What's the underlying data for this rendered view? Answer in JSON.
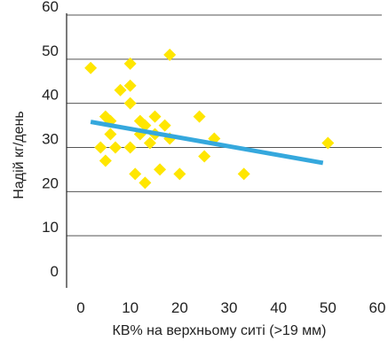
{
  "chart_data": {
    "type": "scatter",
    "title": "",
    "xlabel": "КВ% на верхньому ситі (>19 мм)",
    "ylabel": "Надій кг/день",
    "xlim": [
      0,
      60
    ],
    "ylim": [
      0,
      60
    ],
    "x_ticks": [
      "0",
      "10",
      "20",
      "30",
      "40",
      "50",
      "60"
    ],
    "y_ticks": [
      "0",
      "10",
      "20",
      "30",
      "40",
      "50",
      "60"
    ],
    "grid": "horizontal",
    "legend": "none",
    "marker_color": "#FFE600",
    "trend_color": "#35A8DD",
    "points": [
      [
        2,
        48
      ],
      [
        4,
        30
      ],
      [
        5,
        37
      ],
      [
        5,
        27
      ],
      [
        6,
        33
      ],
      [
        6,
        36
      ],
      [
        7,
        30
      ],
      [
        8,
        43
      ],
      [
        10,
        44
      ],
      [
        10,
        40
      ],
      [
        10,
        49
      ],
      [
        10,
        30
      ],
      [
        11,
        24
      ],
      [
        12,
        33
      ],
      [
        12,
        36
      ],
      [
        13,
        22
      ],
      [
        13,
        35
      ],
      [
        14,
        31
      ],
      [
        15,
        37
      ],
      [
        15,
        33
      ],
      [
        16,
        25
      ],
      [
        17,
        35
      ],
      [
        18,
        32
      ],
      [
        18,
        51
      ],
      [
        20,
        24
      ],
      [
        24,
        37
      ],
      [
        25,
        28
      ],
      [
        27,
        32
      ],
      [
        33,
        24
      ],
      [
        50,
        31
      ]
    ],
    "trend_line": {
      "x": [
        2,
        49
      ],
      "y": [
        35.8,
        26.5
      ]
    }
  }
}
